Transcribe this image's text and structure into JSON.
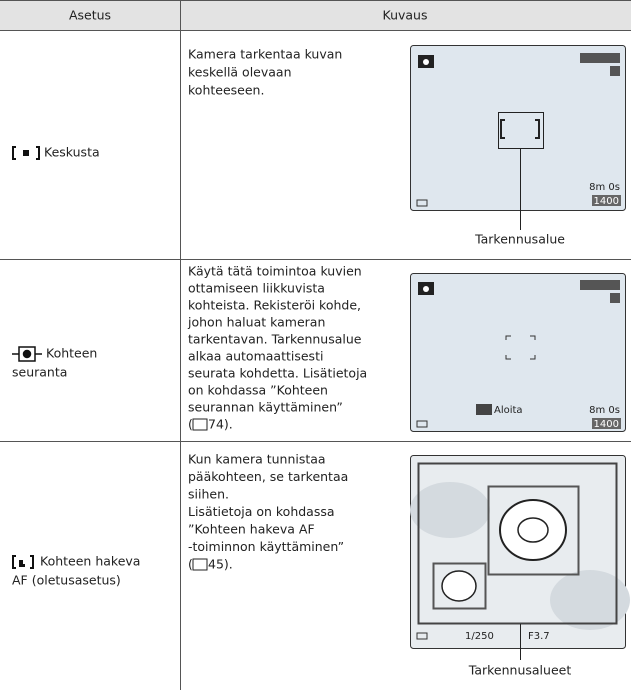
{
  "header": {
    "setting": "Asetus",
    "description": "Kuvaus"
  },
  "rows": [
    {
      "label": [
        "Keskusta"
      ],
      "description": [
        "Kamera tarkentaa kuvan",
        "keskellä olevaan",
        "kohteeseen."
      ],
      "screen": {
        "time": "8m 0s",
        "count": "1400"
      },
      "caption": "Tarkennusalue"
    },
    {
      "label": [
        "Kohteen",
        "seuranta"
      ],
      "description": [
        "Käytä tätä toimintoa kuvien",
        "ottamiseen liikkuvista",
        "kohteista. Rekisteröi kohde,",
        "johon haluat kameran",
        "tarkentavan. Tarkennusalue",
        "alkaa automaattisesti",
        "seurata kohdetta. Lisätietoja",
        "on kohdassa ”Kohteen",
        "seurannan käyttäminen”"
      ],
      "reference": {
        "before": "(",
        "after": "74)."
      },
      "screen": {
        "button": "Aloita",
        "time": "8m 0s",
        "count": "1400"
      }
    },
    {
      "label": [
        "Kohteen hakeva",
        "AF (oletusasetus)"
      ],
      "description": [
        "Kun kamera tunnistaa",
        "pääkohteen, se tarkentaa",
        "siihen.",
        "Lisätietoja on kohdassa",
        "”Kohteen hakeva AF",
        "-toiminnon käyttäminen”"
      ],
      "reference": {
        "before": "(",
        "after": "45)."
      },
      "screen": {
        "shutter": "1/250",
        "aperture": "F3.7"
      },
      "caption": "Tarkennusalueet"
    }
  ]
}
